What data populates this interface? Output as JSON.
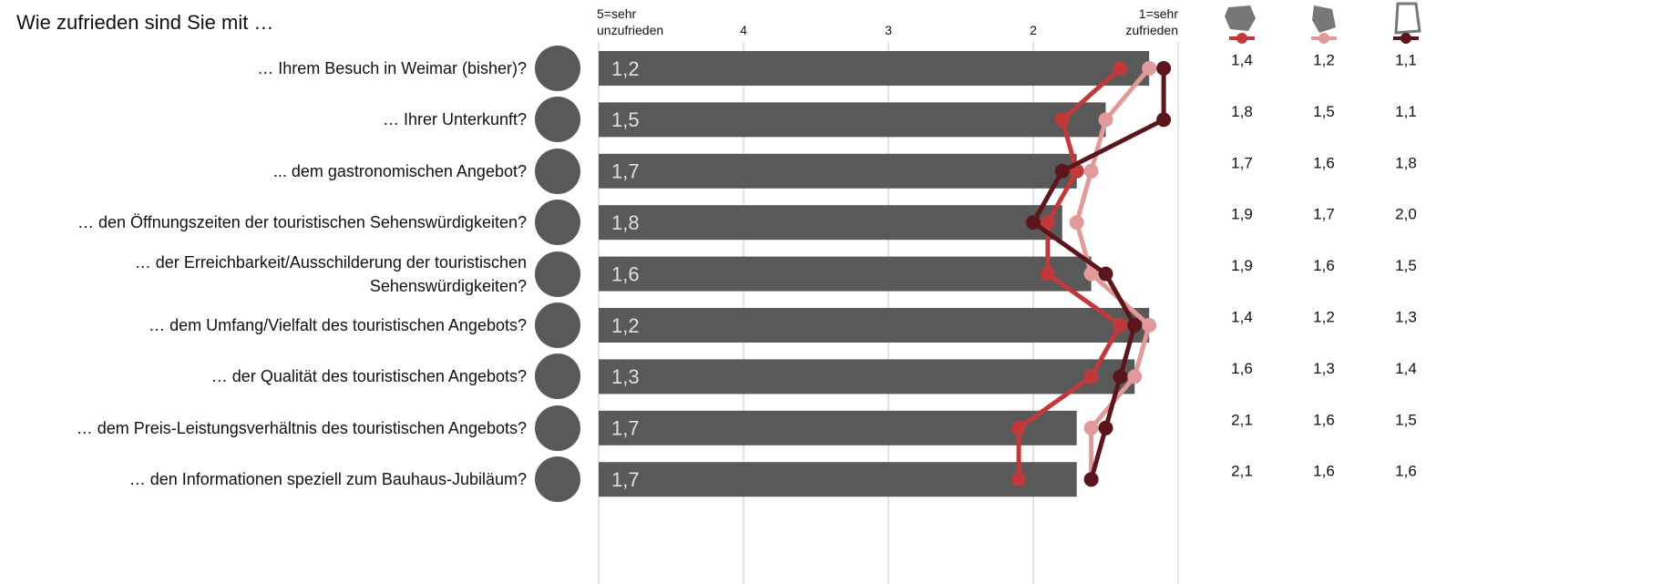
{
  "chart_data": {
    "type": "bar",
    "title": "Wie zufrieden sind Sie mit …",
    "orientation": "horizontal",
    "categories": [
      "… Ihrem Besuch in Weimar (bisher)?",
      "… Ihrer Unterkunft?",
      "... dem gastronomischen Angebot?",
      "… den Öffnungszeiten der touristischen Sehenswürdigkeiten?",
      "… der Erreichbarkeit/Ausschilderung der touristischen\nSehenswürdigkeiten?",
      "… dem Umfang/Vielfalt des touristischen Angebots?",
      "… der Qualität des touristischen Angebots?",
      "… dem Preis-Leistungsverhältnis des touristischen Angebots?",
      "… den Informationen speziell zum Bauhaus-Jubiläum?"
    ],
    "values": [
      1.2,
      1.5,
      1.7,
      1.8,
      1.6,
      1.2,
      1.3,
      1.7,
      1.7
    ],
    "value_labels": [
      "1,2",
      "1,5",
      "1,7",
      "1,8",
      "1,6",
      "1,2",
      "1,3",
      "1,7",
      "1,7"
    ],
    "color": "#595959",
    "xlim": [
      5,
      1
    ],
    "xticks": [
      {
        "value": 5,
        "label": "5=sehr\nunzufrieden"
      },
      4,
      3,
      2,
      {
        "value": 1,
        "label": "1=sehr\nzufrieden"
      }
    ],
    "grid": true,
    "series": [
      {
        "color": "#c0393b",
        "values": [
          1.4,
          1.8,
          1.7,
          1.9,
          1.9,
          1.4,
          1.6,
          2.1,
          2.1
        ],
        "value_labels": [
          "1,4",
          "1,8",
          "1,7",
          "1,9",
          "1,9",
          "1,4",
          "1,6",
          "2,1",
          "2,1"
        ]
      },
      {
        "color": "#e09a9a",
        "values": [
          1.2,
          1.5,
          1.6,
          1.7,
          1.6,
          1.2,
          1.3,
          1.6,
          1.6
        ],
        "value_labels": [
          "1,2",
          "1,5",
          "1,6",
          "1,7",
          "1,6",
          "1,2",
          "1,3",
          "1,6",
          "1,6"
        ]
      },
      {
        "color": "#5a161c",
        "values": [
          1.1,
          1.1,
          1.8,
          2.0,
          1.5,
          1.3,
          1.4,
          1.5,
          1.6
        ],
        "value_labels": [
          "1,1",
          "1,1",
          "1,8",
          "2,0",
          "1,5",
          "1,3",
          "1,4",
          "1,5",
          "1,6"
        ]
      }
    ]
  }
}
